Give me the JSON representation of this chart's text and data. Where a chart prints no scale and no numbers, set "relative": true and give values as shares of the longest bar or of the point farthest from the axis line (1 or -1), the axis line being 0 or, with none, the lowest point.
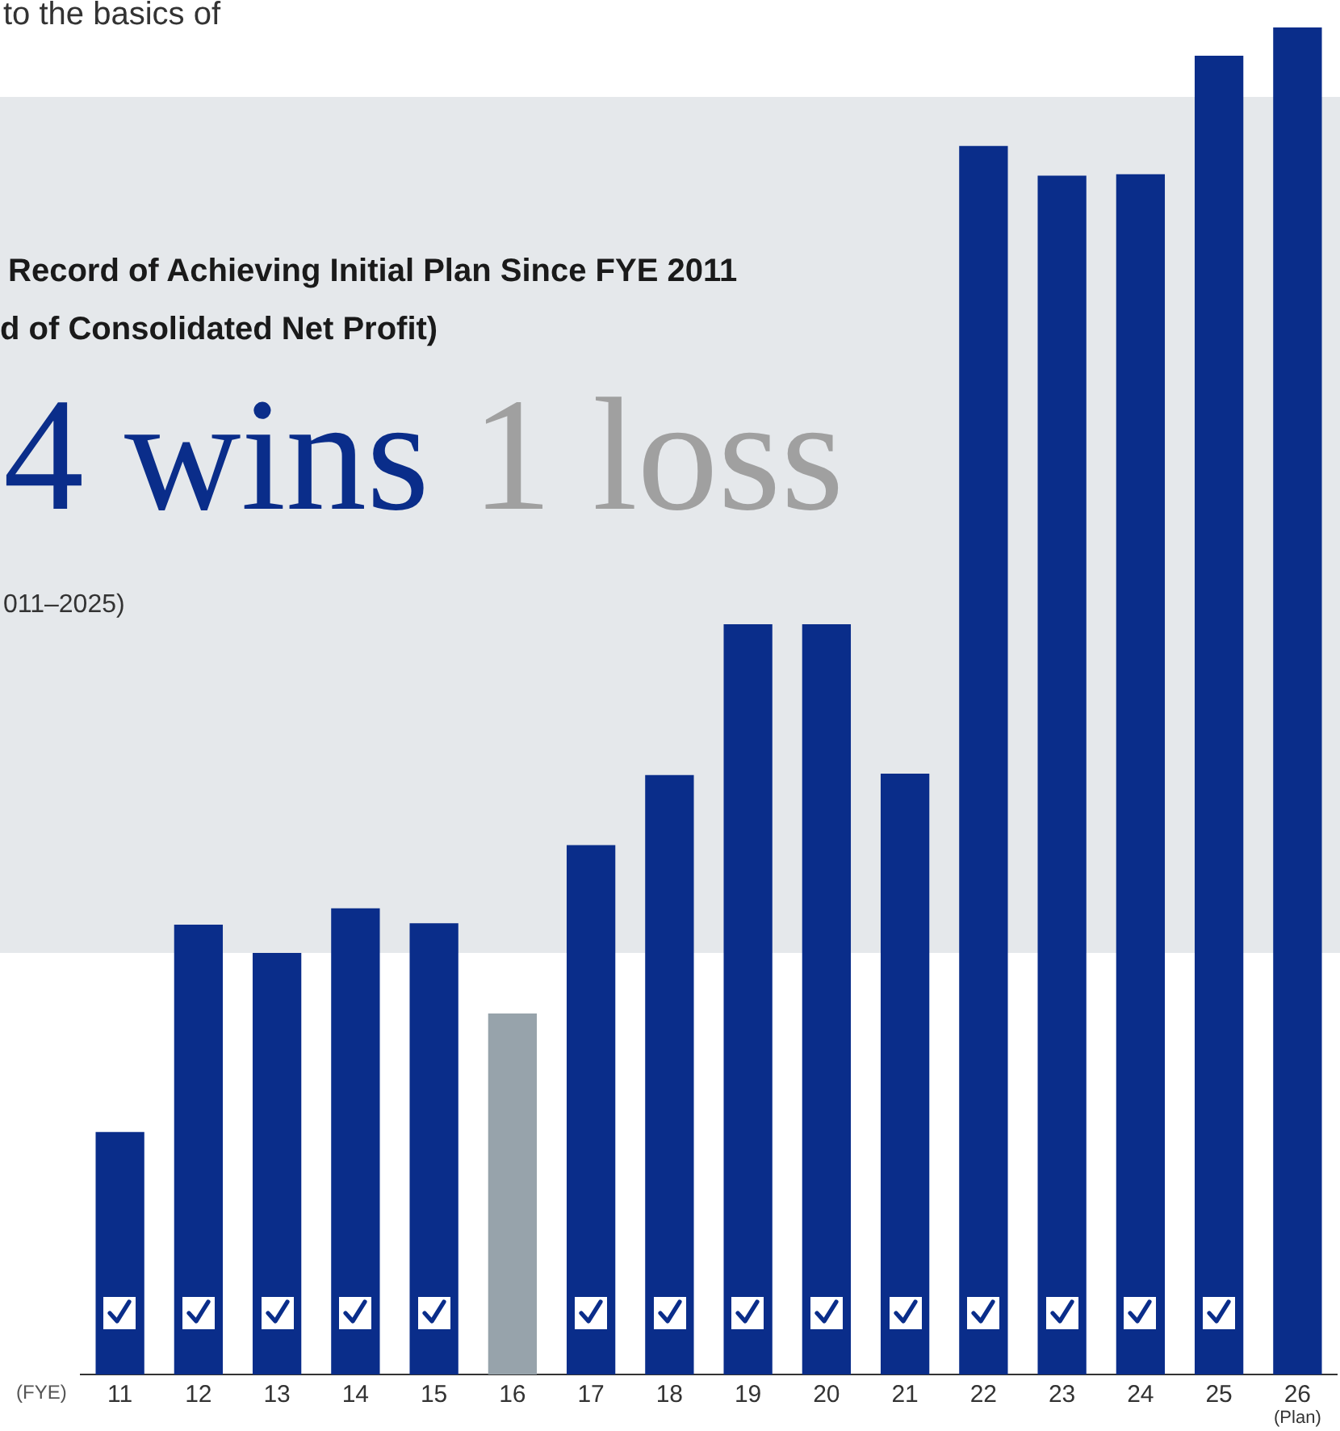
{
  "chart_data": {
    "type": "bar",
    "title": "Record of Achieving Initial Plan Since FYE 2011",
    "subtitle": "d of Consolidated Net Profit)",
    "xlabel": "(FYE)",
    "categories": [
      "11",
      "12",
      "13",
      "14",
      "15",
      "16",
      "17",
      "18",
      "19",
      "20",
      "21",
      "22",
      "23",
      "24",
      "25",
      "26"
    ],
    "values": [
      0.18,
      0.334,
      0.313,
      0.346,
      0.335,
      0.268,
      0.393,
      0.445,
      0.557,
      0.557,
      0.446,
      0.912,
      0.89,
      0.891,
      0.979,
      1
    ],
    "colors": [
      "#0a2d8a",
      "#0a2d8a",
      "#0a2d8a",
      "#0a2d8a",
      "#0a2d8a",
      "#97a3ab",
      "#0a2d8a",
      "#0a2d8a",
      "#0a2d8a",
      "#0a2d8a",
      "#0a2d8a",
      "#0a2d8a",
      "#0a2d8a",
      "#0a2d8a",
      "#0a2d8a",
      "#0a2d8a"
    ],
    "relative": true,
    "grid": false,
    "legend": false,
    "annotations": [
      "to the basics of",
      "4 wins",
      "1 loss",
      "011–2025)",
      "(Plan)"
    ]
  }
}
